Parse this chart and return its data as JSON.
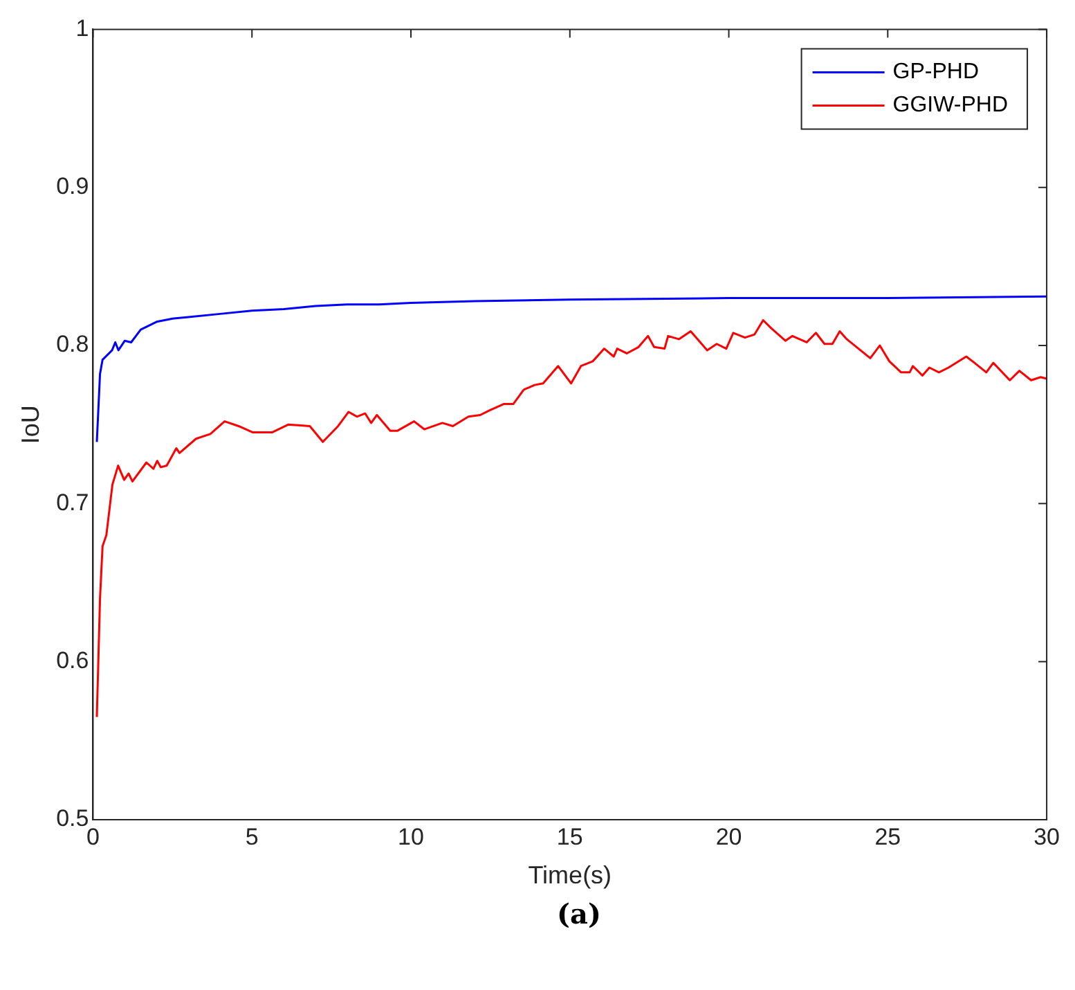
{
  "chart_data": {
    "type": "line",
    "xlabel": "Time(s)",
    "ylabel": "IoU",
    "xlim": [
      0,
      30
    ],
    "xticks": [
      0,
      5,
      10,
      15,
      20,
      25,
      30
    ],
    "ylim": [
      0.5,
      1
    ],
    "yticks": [
      0.5,
      0.6,
      0.7,
      0.8,
      0.9,
      1
    ],
    "grid": false,
    "legend": "top right",
    "marker": "none",
    "line_style": "solid",
    "annotations": [
      "(a)"
    ],
    "series": [
      {
        "name": "GP-PHD",
        "color": "#0000ff",
        "x": [
          0.12,
          0.22,
          0.3,
          0.6,
          0.7,
          0.8,
          1.0,
          1.2,
          1.5,
          2,
          2.5,
          3,
          4,
          5,
          6,
          7,
          8,
          9,
          10,
          12,
          15,
          20,
          25,
          30
        ],
        "values": [
          0.739,
          0.782,
          0.791,
          0.797,
          0.802,
          0.797,
          0.803,
          0.802,
          0.81,
          0.815,
          0.817,
          0.818,
          0.82,
          0.822,
          0.823,
          0.825,
          0.826,
          0.826,
          0.827,
          0.828,
          0.829,
          0.83,
          0.83,
          0.831
        ]
      },
      {
        "name": "GGIW-PHD",
        "color": "#ff0000",
        "x": [
          0.12,
          0.22,
          0.3,
          0.42,
          0.61,
          0.79,
          0.98,
          1.12,
          1.24,
          1.68,
          1.9,
          2.02,
          2.13,
          2.32,
          2.62,
          2.72,
          3.24,
          3.69,
          4.14,
          4.58,
          5.03,
          5.63,
          6.15,
          6.82,
          7.23,
          7.71,
          8.04,
          8.3,
          8.56,
          8.75,
          8.93,
          9.35,
          9.57,
          10.1,
          10.42,
          10.99,
          11.32,
          11.81,
          12.18,
          12.48,
          12.92,
          13.22,
          13.55,
          13.89,
          14.16,
          14.63,
          15.04,
          15.35,
          15.72,
          16.08,
          16.38,
          16.49,
          16.79,
          17.16,
          17.46,
          17.65,
          17.98,
          18.09,
          18.43,
          18.8,
          19.32,
          19.62,
          19.92,
          20.14,
          20.51,
          20.81,
          21.08,
          21.33,
          21.78,
          22.0,
          22.45,
          22.74,
          23.01,
          23.26,
          23.49,
          23.71,
          24.08,
          24.45,
          24.75,
          25.05,
          25.42,
          25.69,
          25.79,
          26.09,
          26.31,
          26.61,
          26.91,
          27.47,
          27.73,
          28.1,
          28.32,
          28.84,
          29.14,
          29.51,
          29.81,
          30
        ],
        "values": [
          0.565,
          0.64,
          0.673,
          0.68,
          0.712,
          0.724,
          0.715,
          0.719,
          0.714,
          0.726,
          0.722,
          0.727,
          0.723,
          0.724,
          0.735,
          0.732,
          0.741,
          0.744,
          0.752,
          0.749,
          0.745,
          0.745,
          0.75,
          0.749,
          0.739,
          0.749,
          0.758,
          0.755,
          0.757,
          0.751,
          0.756,
          0.746,
          0.746,
          0.752,
          0.747,
          0.751,
          0.749,
          0.755,
          0.756,
          0.759,
          0.763,
          0.763,
          0.772,
          0.775,
          0.776,
          0.787,
          0.776,
          0.787,
          0.79,
          0.798,
          0.793,
          0.798,
          0.795,
          0.799,
          0.806,
          0.799,
          0.798,
          0.806,
          0.804,
          0.809,
          0.797,
          0.801,
          0.798,
          0.808,
          0.805,
          0.807,
          0.816,
          0.811,
          0.803,
          0.806,
          0.802,
          0.808,
          0.801,
          0.801,
          0.809,
          0.804,
          0.798,
          0.792,
          0.8,
          0.79,
          0.783,
          0.783,
          0.787,
          0.781,
          0.786,
          0.783,
          0.786,
          0.793,
          0.789,
          0.783,
          0.789,
          0.778,
          0.784,
          0.778,
          0.78,
          0.779
        ]
      }
    ]
  }
}
